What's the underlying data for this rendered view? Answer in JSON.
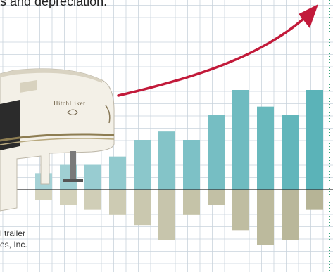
{
  "caption_top": "s and depreciation.",
  "photo_caption": {
    "line1": "l trailer",
    "line2": "es, Inc."
  },
  "trailer_brand": "HitchHiker",
  "colors": {
    "grid": "#c9d3dc",
    "up_bar_light": "#a6d2d6",
    "up_bar_dark": "#5bb3b8",
    "down_bar_light": "#d6d4be",
    "down_bar_dark": "#b6b496",
    "baseline": "#333333",
    "arrow": "#c21a3a",
    "dotted_border": "#3aa57a"
  },
  "chart_data": {
    "type": "bar",
    "up_values": [
      2,
      3,
      3,
      4,
      6,
      7,
      6,
      9,
      12,
      10,
      9,
      12
    ],
    "down_values": [
      2,
      3,
      4,
      5,
      7,
      10,
      5,
      3,
      8,
      11,
      10,
      4
    ],
    "ylim_up": [
      0,
      12
    ],
    "ylim_down": [
      0,
      12
    ]
  }
}
